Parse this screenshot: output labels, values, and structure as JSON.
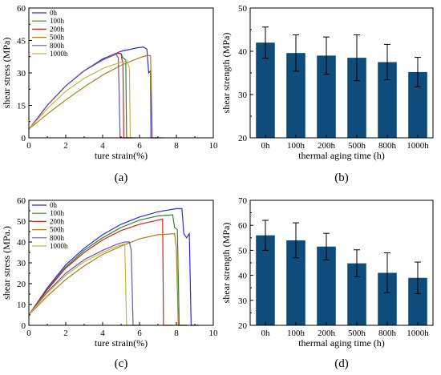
{
  "colors": {
    "0h": "#2b2bd6",
    "100h": "#2f8a2f",
    "200h": "#d62020",
    "500h": "#b07a1e",
    "800h": "#6b56a6",
    "1000h": "#c9b640",
    "bar": "#0e4c7c"
  },
  "chart_data": [
    {
      "id": "a",
      "caption": "(a)",
      "type": "line",
      "xlabel": "ture strain(%)",
      "ylabel": "shear stress (MPa)",
      "xlim": [
        0,
        10
      ],
      "ylim": [
        0,
        60
      ],
      "xticks": [
        "0",
        "2",
        "4",
        "6",
        "8",
        "10"
      ],
      "yticks": [
        "0",
        "15",
        "30",
        "45",
        "60"
      ],
      "legend": [
        "0h",
        "100h",
        "200h",
        "500h",
        "800h",
        "1000h"
      ],
      "series": [
        {
          "name": "0h",
          "color_key": "0h",
          "points": [
            [
              0,
              4
            ],
            [
              1,
              15
            ],
            [
              2,
              24
            ],
            [
              3,
              31
            ],
            [
              4,
              36.5
            ],
            [
              5,
              40
            ],
            [
              5.8,
              41.5
            ],
            [
              6.2,
              42
            ],
            [
              6.4,
              41
            ],
            [
              6.5,
              30
            ],
            [
              6.6,
              31
            ],
            [
              6.62,
              0
            ],
            [
              7,
              0
            ]
          ]
        },
        {
          "name": "100h",
          "color_key": "100h",
          "points": [
            [
              0,
              4
            ],
            [
              1,
              15
            ],
            [
              2,
              24
            ],
            [
              3,
              31
            ],
            [
              4,
              36
            ],
            [
              4.8,
              39
            ],
            [
              5.0,
              39
            ],
            [
              5.1,
              37
            ],
            [
              5.25,
              36
            ],
            [
              5.3,
              0
            ],
            [
              5.8,
              0
            ]
          ]
        },
        {
          "name": "200h",
          "color_key": "200h",
          "points": [
            [
              0,
              4
            ],
            [
              1,
              15
            ],
            [
              2,
              24
            ],
            [
              3,
              31
            ],
            [
              4,
              36
            ],
            [
              4.8,
              39
            ],
            [
              5.0,
              39
            ],
            [
              5.05,
              36
            ],
            [
              5.1,
              35
            ],
            [
              5.15,
              0
            ],
            [
              5.6,
              0
            ]
          ]
        },
        {
          "name": "500h",
          "color_key": "500h",
          "points": [
            [
              0,
              4
            ],
            [
              1,
              11
            ],
            [
              2,
              17.5
            ],
            [
              3,
              23.5
            ],
            [
              4,
              29
            ],
            [
              5,
              33.5
            ],
            [
              6,
              37
            ],
            [
              6.4,
              38
            ],
            [
              6.6,
              38
            ],
            [
              6.7,
              0
            ],
            [
              7.3,
              0
            ]
          ]
        },
        {
          "name": "800h",
          "color_key": "800h",
          "points": [
            [
              0,
              4
            ],
            [
              1,
              15
            ],
            [
              2,
              24
            ],
            [
              3,
              31
            ],
            [
              4,
              36
            ],
            [
              4.7,
              39
            ],
            [
              4.85,
              37
            ],
            [
              4.95,
              0
            ],
            [
              5.4,
              0
            ]
          ]
        },
        {
          "name": "1000h",
          "color_key": "1000h",
          "points": [
            [
              0,
              4
            ],
            [
              1,
              13.5
            ],
            [
              2,
              21.5
            ],
            [
              3,
              27.5
            ],
            [
              4,
              32
            ],
            [
              5,
              35
            ],
            [
              5.35,
              35.2
            ],
            [
              5.45,
              32
            ],
            [
              5.5,
              0
            ],
            [
              5.9,
              0
            ]
          ]
        }
      ]
    },
    {
      "id": "b",
      "caption": "(b)",
      "type": "bar",
      "xlabel": "thermal aging time (h)",
      "ylabel": "shear strength (MPa)",
      "ylim": [
        20,
        50
      ],
      "yticks": [
        "20",
        "30",
        "40",
        "50"
      ],
      "categories": [
        "0h",
        "100h",
        "200h",
        "500h",
        "800h",
        "1000h"
      ],
      "values": [
        42,
        39.6,
        39,
        38.5,
        37.5,
        35.2
      ],
      "errors": [
        3.6,
        4.2,
        4.3,
        5.3,
        4.1,
        3.4
      ]
    },
    {
      "id": "c",
      "caption": "(c)",
      "type": "line",
      "xlabel": "ture strain(%)",
      "ylabel": "shear stress (MPa.)",
      "xlim": [
        0,
        10
      ],
      "ylim": [
        0,
        60
      ],
      "xticks": [
        "0",
        "2",
        "4",
        "6",
        "8",
        "10"
      ],
      "yticks": [
        "0",
        "10",
        "20",
        "30",
        "40",
        "50",
        "60"
      ],
      "legend": [
        "0h",
        "100h",
        "200h",
        "500h",
        "800h",
        "1000h"
      ],
      "series": [
        {
          "name": "0h",
          "color_key": "0h",
          "points": [
            [
              0,
              5
            ],
            [
              1,
              18
            ],
            [
              2,
              29
            ],
            [
              3,
              37
            ],
            [
              4,
              43.5
            ],
            [
              5,
              48.5
            ],
            [
              6,
              52
            ],
            [
              7,
              54.5
            ],
            [
              8,
              56
            ],
            [
              8.3,
              56
            ],
            [
              8.4,
              44
            ],
            [
              8.55,
              42
            ],
            [
              8.7,
              44
            ],
            [
              8.8,
              0
            ],
            [
              9.2,
              0
            ]
          ]
        },
        {
          "name": "100h",
          "color_key": "100h",
          "points": [
            [
              0,
              5
            ],
            [
              1,
              17.5
            ],
            [
              2,
              28
            ],
            [
              3,
              36
            ],
            [
              4,
              42
            ],
            [
              5,
              47
            ],
            [
              6,
              50.5
            ],
            [
              7,
              52.5
            ],
            [
              7.8,
              53
            ],
            [
              7.9,
              47
            ],
            [
              8.05,
              46
            ],
            [
              8.15,
              0
            ],
            [
              8.6,
              0
            ]
          ]
        },
        {
          "name": "200h",
          "color_key": "200h",
          "points": [
            [
              0,
              5
            ],
            [
              1,
              17
            ],
            [
              2,
              27.5
            ],
            [
              3,
              35
            ],
            [
              4,
              41
            ],
            [
              5,
              45.5
            ],
            [
              6,
              48.5
            ],
            [
              7,
              50.5
            ],
            [
              7.25,
              51
            ],
            [
              7.3,
              0
            ],
            [
              7.8,
              0
            ]
          ]
        },
        {
          "name": "500h",
          "color_key": "500h",
          "points": [
            [
              0,
              5
            ],
            [
              1,
              14
            ],
            [
              2,
              22
            ],
            [
              3,
              28.5
            ],
            [
              4,
              34
            ],
            [
              5,
              38
            ],
            [
              6,
              41.5
            ],
            [
              7,
              43.5
            ],
            [
              7.9,
              44
            ],
            [
              8.0,
              37
            ],
            [
              8.1,
              0
            ],
            [
              8.6,
              0
            ]
          ]
        },
        {
          "name": "800h",
          "color_key": "800h",
          "points": [
            [
              0,
              5
            ],
            [
              1,
              16
            ],
            [
              2,
              25
            ],
            [
              3,
              31.5
            ],
            [
              4,
              36
            ],
            [
              4.8,
              39
            ],
            [
              5.2,
              40
            ],
            [
              5.45,
              40
            ],
            [
              5.55,
              36
            ],
            [
              5.65,
              0
            ],
            [
              6.1,
              0
            ]
          ]
        },
        {
          "name": "1000h",
          "color_key": "1000h",
          "points": [
            [
              0,
              5
            ],
            [
              1,
              15.5
            ],
            [
              2,
              24
            ],
            [
              3,
              30.5
            ],
            [
              4,
              35
            ],
            [
              4.8,
              38
            ],
            [
              5.2,
              39
            ],
            [
              5.3,
              0
            ],
            [
              5.8,
              0
            ]
          ]
        }
      ]
    },
    {
      "id": "d",
      "caption": "(d)",
      "type": "bar",
      "xlabel": "thermal aging time (h)",
      "ylabel": "shear strength (MPa)",
      "ylim": [
        20,
        70
      ],
      "yticks": [
        "20",
        "30",
        "40",
        "50",
        "60",
        "70"
      ],
      "categories": [
        "0h",
        "100h",
        "200h",
        "500h",
        "800h",
        "1000h"
      ],
      "values": [
        56,
        54,
        51.5,
        44.8,
        41,
        39
      ],
      "errors": [
        6,
        7,
        5.3,
        5.4,
        8,
        6.3
      ]
    }
  ]
}
